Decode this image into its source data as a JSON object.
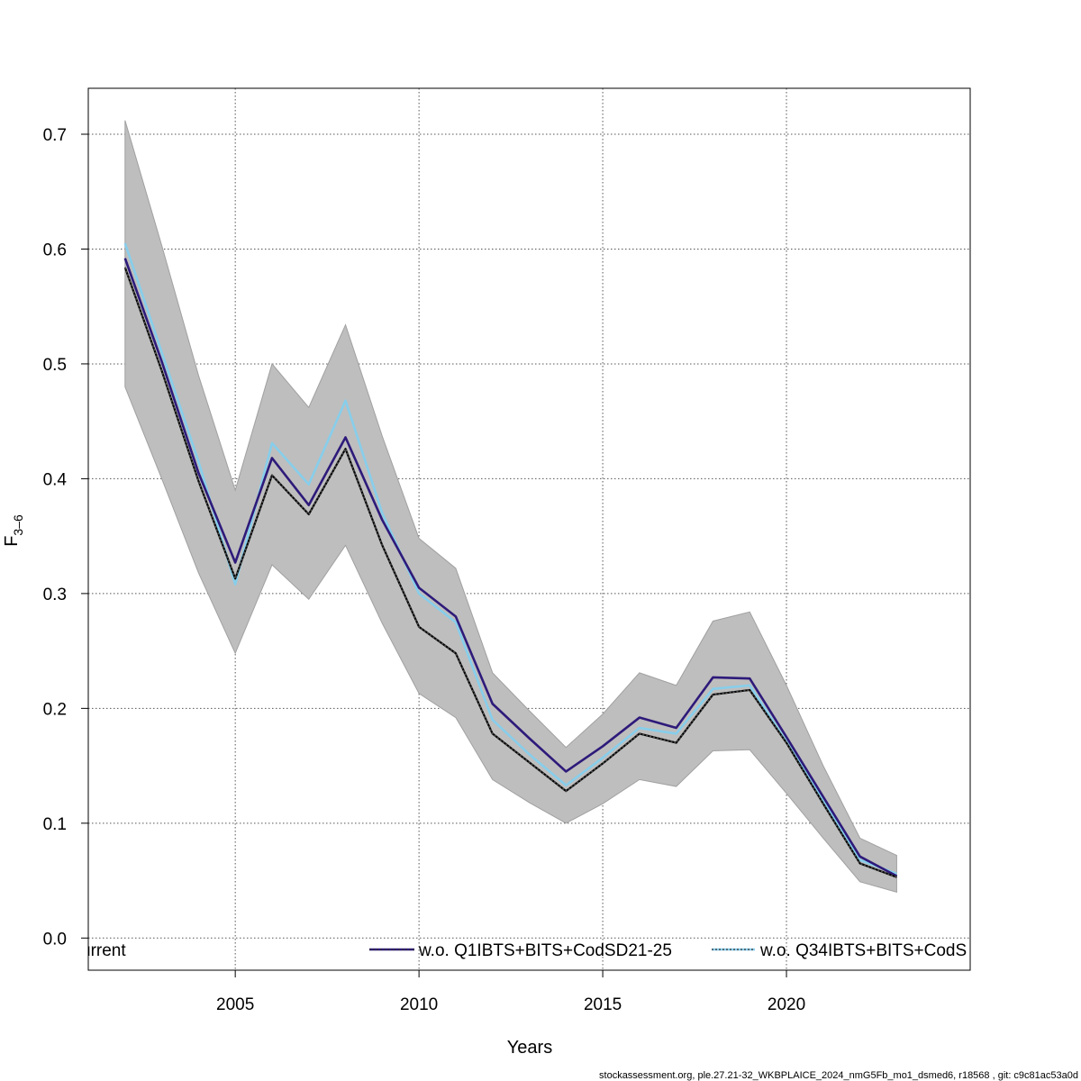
{
  "chart_data": {
    "type": "line",
    "xlabel": "Years",
    "ylabel": "F",
    "ylabel_sub": "3–6",
    "xlim": [
      2001,
      2025
    ],
    "ylim": [
      -0.028,
      0.74
    ],
    "xticks": [
      2005,
      2010,
      2015,
      2020
    ],
    "yticks": [
      0.0,
      0.1,
      0.2,
      0.3,
      0.4,
      0.5,
      0.6,
      0.7
    ],
    "grid": true,
    "legend_placement": "bottom",
    "ci_band": {
      "color": "#bebebe",
      "x": [
        2002,
        2003,
        2004,
        2005,
        2006,
        2007,
        2008,
        2009,
        2010,
        2011,
        2012,
        2013,
        2014,
        2015,
        2016,
        2017,
        2018,
        2019,
        2020,
        2021,
        2022,
        2023
      ],
      "lower": [
        0.48,
        0.4,
        0.318,
        0.248,
        0.325,
        0.295,
        0.342,
        0.274,
        0.213,
        0.192,
        0.138,
        0.118,
        0.1,
        0.117,
        0.138,
        0.132,
        0.163,
        0.164,
        0.126,
        0.087,
        0.049,
        0.04
      ],
      "upper": [
        0.712,
        0.603,
        0.49,
        0.39,
        0.5,
        0.462,
        0.534,
        0.437,
        0.348,
        0.322,
        0.231,
        0.198,
        0.166,
        0.195,
        0.231,
        0.22,
        0.276,
        0.284,
        0.22,
        0.15,
        0.087,
        0.072
      ]
    },
    "x": [
      2002,
      2003,
      2004,
      2005,
      2006,
      2007,
      2008,
      2009,
      2010,
      2011,
      2012,
      2013,
      2014,
      2015,
      2016,
      2017,
      2018,
      2019,
      2020,
      2021,
      2022,
      2023
    ],
    "series": [
      {
        "name": "urrent",
        "color": "#000000",
        "style": "solid",
        "values": [
          0.584,
          0.494,
          0.398,
          0.313,
          0.403,
          0.369,
          0.426,
          0.342,
          0.271,
          0.248,
          0.178,
          0.153,
          0.128,
          0.152,
          0.178,
          0.17,
          0.212,
          0.216,
          0.17,
          0.117,
          0.065,
          0.053
        ]
      },
      {
        "name": "w.o. Q1IBTS+BITS+CodSD21-25",
        "color": "#2e1a7a",
        "style": "solid",
        "values": [
          0.592,
          0.502,
          0.405,
          0.327,
          0.418,
          0.377,
          0.436,
          0.364,
          0.305,
          0.28,
          0.204,
          0.174,
          0.145,
          0.167,
          0.192,
          0.183,
          0.227,
          0.226,
          0.175,
          0.123,
          0.071,
          0.054
        ]
      },
      {
        "name": "w.o. Q34IBTS+BITS+CodS",
        "color": "#87ceeb",
        "style": "solid",
        "values": [
          0.605,
          0.51,
          0.415,
          0.308,
          0.431,
          0.395,
          0.468,
          0.37,
          0.3,
          0.275,
          0.19,
          0.16,
          0.133,
          0.157,
          0.183,
          0.178,
          0.217,
          0.22,
          0.171,
          0.12,
          0.068,
          0.056
        ]
      }
    ],
    "overlay_dotted": {
      "color": "#4d4d4d",
      "values": [
        0.584,
        0.494,
        0.398,
        0.313,
        0.403,
        0.369,
        0.426,
        0.342,
        0.271,
        0.248,
        0.178,
        0.153,
        0.128,
        0.152,
        0.178,
        0.17,
        0.212,
        0.216,
        0.17,
        0.117,
        0.065,
        0.053
      ]
    }
  },
  "legend": {
    "items": [
      {
        "label": "urrent",
        "color": "#000000",
        "dotted": false
      },
      {
        "label": "w.o. Q1IBTS+BITS+CodSD21-25",
        "color": "#2e1a7a",
        "dotted": false
      },
      {
        "label": "w.o. Q34IBTS+BITS+CodS",
        "color": "#87ceeb",
        "dotted": true
      }
    ]
  },
  "footer": "stockassessment.org, ple.27.21-32_WKBPLAICE_2024_nmG5Fb_mo1_dsmed6, r18568 , git: c9c81ac53a0d"
}
